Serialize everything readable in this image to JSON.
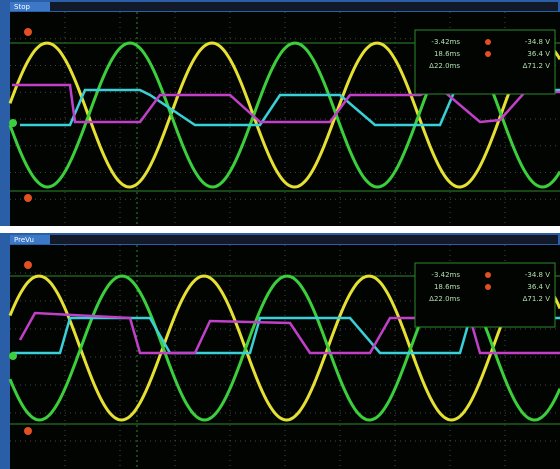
{
  "panels": [
    {
      "status": "Stop",
      "readout": {
        "t1": "-3.42ms",
        "v1": "-34.8 V",
        "t2": "18.6ms",
        "v2": "36.4 V",
        "dt": "Δ22.0ms",
        "dv": "Δ71.2 V"
      }
    },
    {
      "status": "PreVu",
      "readout": {
        "t1": "-3.42ms",
        "v1": "-34.8 V",
        "t2": "18.6ms",
        "v2": "36.4 V",
        "dt": "Δ22.0ms",
        "dv": "Δ71.2 V"
      }
    }
  ]
}
